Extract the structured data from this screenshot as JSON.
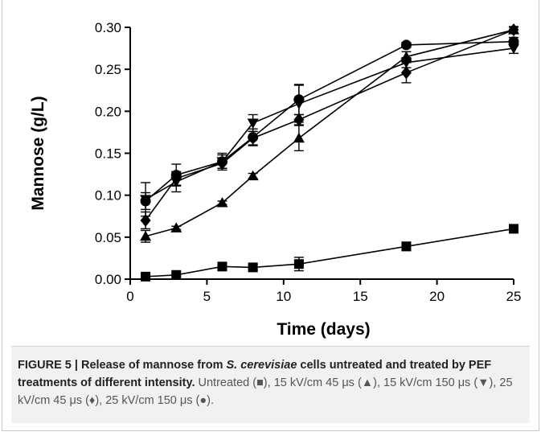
{
  "chart_data": {
    "type": "line",
    "xlabel": "Time (days)",
    "ylabel": "Mannose (g/L)",
    "xlim": [
      0,
      25
    ],
    "ylim": [
      0,
      0.3
    ],
    "xticks": [
      "0",
      "5",
      "10",
      "15",
      "20",
      "25"
    ],
    "yticks": [
      "0.00",
      "0.05",
      "0.10",
      "0.15",
      "0.20",
      "0.25",
      "0.30"
    ],
    "x": [
      1,
      3,
      6,
      8,
      11,
      18,
      25
    ],
    "series": [
      {
        "marker": "square",
        "values": [
          0.003,
          0.005,
          0.015,
          0.014,
          0.018,
          0.039,
          0.06
        ],
        "errors": [
          0.002,
          0.002,
          0.003,
          0.003,
          0.008,
          0.005,
          0.002
        ]
      },
      {
        "marker": "triangle-up",
        "values": [
          0.051,
          0.061,
          0.091,
          0.123,
          0.168,
          0.265,
          0.297
        ],
        "errors": [
          0.007,
          0.002,
          0.002,
          0.003,
          0.015,
          0.006,
          0.003
        ]
      },
      {
        "marker": "triangle-down",
        "values": [
          0.095,
          0.116,
          0.14,
          0.186,
          0.209,
          0.258,
          0.275
        ],
        "errors": [
          0.02,
          0.012,
          0.008,
          0.01,
          0.022,
          0.006,
          0.006
        ]
      },
      {
        "marker": "diamond",
        "values": [
          0.07,
          0.12,
          0.138,
          0.168,
          0.19,
          0.246,
          0.297
        ],
        "errors": [
          0.01,
          0.008,
          0.006,
          0.008,
          0.006,
          0.012,
          0.004
        ]
      },
      {
        "marker": "circle",
        "values": [
          0.093,
          0.124,
          0.14,
          0.169,
          0.214,
          0.279,
          0.283
        ],
        "errors": [
          0.01,
          0.013,
          0.01,
          0.01,
          0.018,
          0.003,
          0.005
        ]
      }
    ]
  },
  "caption": {
    "lead": "FIGURE 5 | Release of mannose from ",
    "organism": "S. cerevisiae",
    "lead2": " cells untreated and treated by PEF treatments of different intensity.",
    "detail": " Untreated (■), 15 kV/cm 45 μs (▲), 15 kV/cm 150 μs (▼), 25 kV/cm 45 μs (♦), 25 kV/cm 150 μs (●)."
  }
}
